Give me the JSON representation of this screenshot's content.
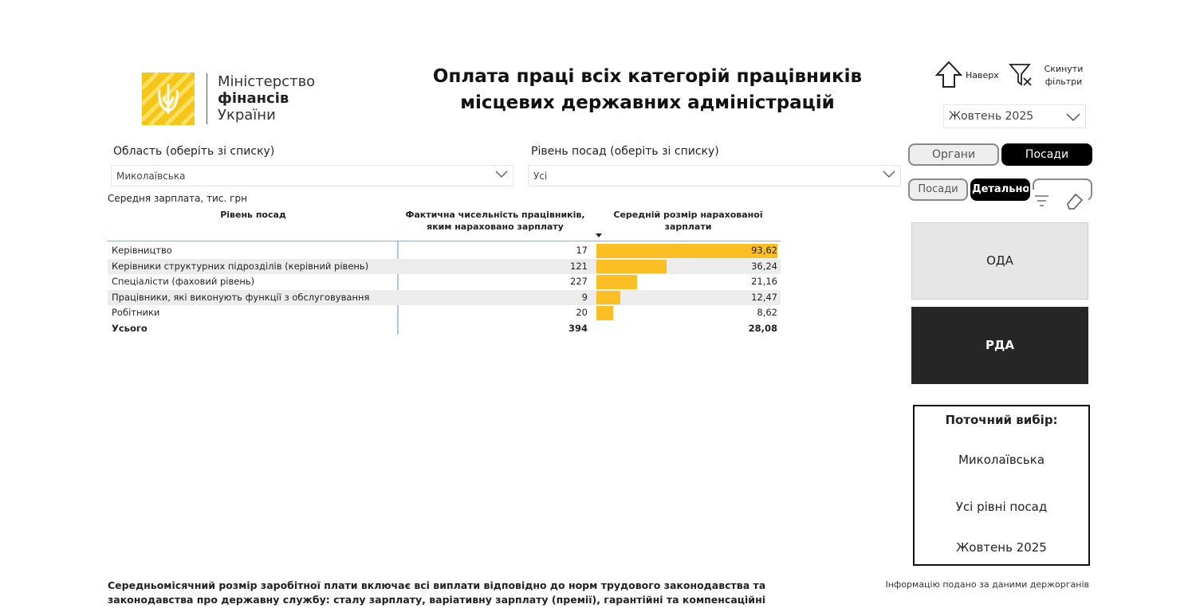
{
  "header": {
    "logo": [
      "Міністерство",
      "фінансів",
      "України"
    ],
    "title": "Оплата праці всіх категорій працівників місцевих державних адміністрацій",
    "nav": [
      "Наверх",
      "Скинути фільтри"
    ],
    "period_select": "Жовтень 2025"
  },
  "filters": {
    "region": {
      "label": "Область (оберіть зі списку)",
      "value": "Миколаївська"
    },
    "position": {
      "label": "Рівень посад (оберіть зі списку)",
      "value": "Усі"
    }
  },
  "toggles": {
    "main": [
      "Органи",
      "Посади"
    ],
    "sub": [
      "Посади",
      "Детально"
    ]
  },
  "table": {
    "caption": "Середня зарплата, тис. грн",
    "columns": [
      "Рівень посад",
      "Фактична чисельність працівників, яким нараховано зарплату",
      "Середній розмір нарахованої зарплати"
    ],
    "rows": [
      [
        "Керівництво",
        17,
        {
          "value": 93.62,
          "label": "93,62"
        }
      ],
      [
        "Керівники структурних підрозділів (керівний рівень)",
        121,
        {
          "value": 36.24,
          "label": "36,24"
        }
      ],
      [
        "Спеціалісти (фаховий рівень)",
        227,
        {
          "value": 21.16,
          "label": "21,16"
        }
      ],
      [
        "Працівники, які виконують функції з обслуговування",
        9,
        {
          "value": 12.47,
          "label": "12,47"
        }
      ],
      [
        "Робітники",
        20,
        {
          "value": 8.62,
          "label": "8,62"
        }
      ]
    ],
    "total": [
      "Усього",
      394,
      {
        "value": 28.08,
        "label": "28,08"
      }
    ]
  },
  "buttons": [
    "ОДА",
    "РДА"
  ],
  "selection": {
    "title": "Поточний вибір:",
    "items": [
      "Миколаївська",
      "Усі рівні посад",
      "Жовтень 2025"
    ]
  },
  "footer": {
    "note": "Середньомісячний розмір заробітної плати включає всі виплати відповідно до норм трудового законодавства та законодавства про державну службу: сталу зарплату, варіативну зарплату (премії), гарантійні та компенсаційні виплати",
    "source": "Інформацію подано за даними держорганів"
  }
}
